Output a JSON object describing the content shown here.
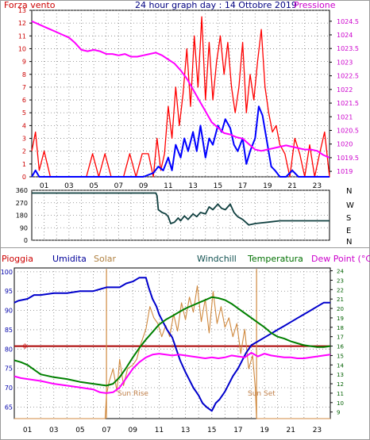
{
  "colors": {
    "wind_speed": "#ff0000",
    "wind_avg": "#0000ff",
    "pressure": "#ff00ff",
    "direction": "#104040",
    "rain": "#aa0000",
    "humidity": "#0000cc",
    "solar": "#d08a40",
    "windchill": "#008000",
    "temperature": "#008000",
    "dewpoint": "#ff00ff",
    "grid": "#808080",
    "frame": "#000000"
  },
  "header": {
    "left": "Forza vento",
    "center": "24 hour graph day : 14 Ottobre 2019",
    "right": "Pressione"
  },
  "bottom_header": {
    "rain": "Pioggia",
    "humidity": "Umidita",
    "solar": "Solar",
    "windchill": "Windchill",
    "temperature": "Temperatura",
    "dewpoint": "Dew Point (°C)"
  },
  "time_labels": [
    "01",
    "03",
    "05",
    "07",
    "09",
    "11",
    "13",
    "15",
    "17",
    "19",
    "21",
    "23"
  ],
  "annotations": {
    "sunrise": "Sun Rise",
    "sunset": "Sun Set"
  },
  "chart_data": [
    {
      "type": "line",
      "series_names": [
        "Forza vento",
        "Pressione"
      ],
      "left_axis_ticks": [
        "0",
        "1",
        "2",
        "3",
        "4",
        "5",
        "6",
        "7",
        "8",
        "9",
        "10",
        "11",
        "12",
        "13"
      ],
      "right_axis_ticks": [
        "1019",
        "1019.5",
        "1020",
        "1020.5",
        "1021",
        "1021.5",
        "1022",
        "1022.5",
        "1023",
        "1023.5",
        "1024",
        "1024.5"
      ],
      "ylim_left": [
        0,
        13
      ],
      "ylim_right": [
        1018.8,
        1024.9
      ],
      "wind_gust_x": [
        0,
        0.3,
        0.6,
        1,
        1.5,
        2,
        2.4,
        2.9,
        3.4,
        3.9,
        4.4,
        4.9,
        5.4,
        5.9,
        6.4,
        6.9,
        7.4,
        7.9,
        8.4,
        8.9,
        9.4,
        9.8,
        10.1,
        10.4,
        10.7,
        11,
        11.3,
        11.6,
        11.9,
        12.2,
        12.5,
        12.8,
        13.1,
        13.4,
        13.7,
        14,
        14.3,
        14.6,
        14.9,
        15.2,
        15.5,
        15.8,
        16.1,
        16.4,
        16.7,
        17,
        17.3,
        17.6,
        17.9,
        18.2,
        18.5,
        18.8,
        19.1,
        19.4,
        19.7,
        20,
        20.4,
        20.8,
        21.2,
        21.6,
        22,
        22.4,
        22.8,
        23.2,
        23.6,
        24
      ],
      "wind_gust_y": [
        2,
        3.5,
        0.5,
        2,
        0,
        0,
        0,
        0,
        0,
        0,
        0,
        1.8,
        0,
        1.8,
        0,
        0,
        0,
        1.8,
        0,
        1.8,
        1.8,
        0,
        3,
        0.5,
        1.8,
        5.5,
        3,
        7,
        4,
        6.5,
        10,
        5.5,
        11,
        7,
        12.5,
        6,
        10.5,
        6,
        9,
        11,
        8,
        10.5,
        7,
        5,
        7,
        10.5,
        5,
        8,
        6,
        9,
        11.5,
        7,
        5,
        3.5,
        4,
        2.5,
        1.8,
        0,
        3,
        1.8,
        0,
        2.5,
        0,
        1.8,
        3.5,
        0
      ],
      "wind_avg_x": [
        0,
        0.3,
        0.6,
        1,
        2,
        4,
        6,
        8,
        9,
        9.8,
        10.2,
        10.6,
        11,
        11.3,
        11.6,
        12,
        12.3,
        12.6,
        13,
        13.3,
        13.6,
        14,
        14.3,
        14.6,
        15,
        15.3,
        15.6,
        16,
        16.3,
        16.6,
        17,
        17.3,
        17.6,
        18,
        18.3,
        18.6,
        19,
        19.3,
        19.6,
        20,
        20.5,
        21,
        21.5,
        22,
        23,
        24
      ],
      "wind_avg_y": [
        0,
        0.5,
        0,
        0,
        0,
        0,
        0,
        0,
        0,
        0.3,
        0.8,
        0.5,
        1.5,
        0.5,
        2.5,
        1.5,
        3,
        2,
        3.5,
        2,
        4,
        1.5,
        3,
        2.5,
        4,
        3.5,
        4.5,
        3.8,
        2.5,
        2,
        3,
        1,
        2,
        3,
        5.5,
        4.8,
        2.5,
        0.8,
        0.5,
        0,
        0,
        0.5,
        0,
        0,
        0,
        0
      ],
      "pressure_x": [
        0,
        0.5,
        1,
        1.5,
        2,
        2.5,
        3,
        3.5,
        4,
        4.5,
        5,
        5.5,
        6,
        6.5,
        7,
        7.5,
        8,
        8.5,
        9,
        9.5,
        10,
        10.5,
        11,
        11.5,
        12,
        12.5,
        13,
        13.5,
        14,
        14.5,
        15,
        15.5,
        16,
        16.5,
        17,
        17.5,
        18,
        18.5,
        19,
        19.5,
        20,
        20.5,
        21,
        21.5,
        22,
        22.5,
        23,
        23.5,
        24
      ],
      "pressure_y": [
        1024.5,
        1024.4,
        1024.3,
        1024.2,
        1024.1,
        1024.0,
        1023.9,
        1023.7,
        1023.45,
        1023.4,
        1023.45,
        1023.4,
        1023.3,
        1023.3,
        1023.25,
        1023.3,
        1023.2,
        1023.2,
        1023.25,
        1023.3,
        1023.35,
        1023.25,
        1023.1,
        1022.95,
        1022.7,
        1022.4,
        1022.0,
        1021.6,
        1021.2,
        1020.8,
        1020.6,
        1020.4,
        1020.35,
        1020.25,
        1020.2,
        1020.0,
        1019.8,
        1019.75,
        1019.8,
        1019.85,
        1019.9,
        1019.95,
        1019.9,
        1019.85,
        1019.8,
        1019.8,
        1019.75,
        1019.6,
        1019.5
      ]
    },
    {
      "type": "line",
      "series_names": [
        "direction"
      ],
      "left_axis_ticks": [
        "0",
        "90",
        "180",
        "270",
        "360"
      ],
      "right_axis_ticks": [
        "N",
        "W",
        "S",
        "E",
        "N"
      ],
      "ylim": [
        0,
        360
      ],
      "direction_x": [
        0,
        2,
        4,
        6,
        8,
        9,
        10,
        10.1,
        10.2,
        10.5,
        10.8,
        11,
        11.2,
        11.5,
        11.8,
        12,
        12.3,
        12.6,
        13,
        13.3,
        13.6,
        14,
        14.3,
        14.6,
        15,
        15.3,
        15.6,
        16,
        16.3,
        16.6,
        17,
        17.5,
        18,
        18.5,
        19,
        20,
        22,
        24
      ],
      "direction_y": [
        340,
        340,
        340,
        340,
        340,
        340,
        340,
        320,
        220,
        200,
        190,
        170,
        120,
        130,
        160,
        140,
        175,
        150,
        190,
        170,
        200,
        190,
        240,
        220,
        260,
        230,
        220,
        260,
        200,
        170,
        150,
        110,
        120,
        125,
        130,
        140,
        140,
        140
      ]
    },
    {
      "type": "line",
      "series_names": [
        "Pioggia",
        "Umidita",
        "Solar",
        "Windchill",
        "Temperatura",
        "Dew Point (°C)"
      ],
      "left_axis_ticks": [
        "65",
        "70",
        "75",
        "80",
        "85",
        "90",
        "95",
        "100"
      ],
      "right_axis_ticks": [
        "9",
        "10",
        "11",
        "12",
        "13",
        "14",
        "15",
        "16",
        "17",
        "18",
        "19",
        "20",
        "21",
        "22",
        "23",
        "24"
      ],
      "rain_axis_label": "0",
      "ylim_left": [
        62,
        101
      ],
      "ylim_right": [
        8.3,
        24.3
      ],
      "humidity_x": [
        0,
        0.3,
        1,
        1.5,
        2,
        3,
        4,
        5,
        6,
        7,
        8,
        8.5,
        9,
        9.5,
        10,
        10.2,
        10.5,
        10.8,
        11,
        11.3,
        11.6,
        12,
        12.3,
        12.6,
        13,
        13.3,
        13.6,
        14,
        14.3,
        14.6,
        15,
        15.3,
        15.6,
        16,
        16.3,
        16.6,
        17,
        17.3,
        17.6,
        18,
        18.5,
        19,
        19.5,
        20,
        20.5,
        21,
        21.5,
        22,
        22.5,
        23,
        23.5,
        24
      ],
      "humidity_y": [
        92,
        92.5,
        93,
        94,
        94,
        94.5,
        94.5,
        95,
        95,
        96,
        96,
        97,
        97.5,
        98.5,
        98.5,
        96,
        93,
        91,
        89,
        87,
        85,
        83,
        80,
        77,
        74,
        72,
        70,
        68,
        66,
        65,
        64,
        66,
        67,
        69,
        71,
        73,
        75,
        77,
        79,
        81,
        82,
        83,
        84,
        85,
        86,
        87,
        88,
        89,
        90,
        91,
        92,
        92
      ],
      "temp_x": [
        0,
        0.5,
        1,
        2,
        3,
        4,
        5,
        6,
        6.5,
        7,
        7.5,
        8,
        8.5,
        9,
        9.5,
        10,
        10.5,
        11,
        11.5,
        12,
        12.5,
        13,
        13.5,
        14,
        14.5,
        15,
        15.5,
        16,
        16.5,
        17,
        17.5,
        18,
        18.5,
        19,
        19.5,
        20,
        20.5,
        21,
        21.5,
        22,
        22.5,
        23,
        23.5,
        24
      ],
      "temp_y": [
        14.5,
        14.3,
        14.0,
        13.0,
        12.7,
        12.5,
        12.2,
        12.0,
        11.9,
        11.8,
        12.0,
        12.7,
        13.7,
        14.8,
        15.8,
        16.7,
        17.5,
        18.3,
        18.8,
        19.2,
        19.6,
        20.0,
        20.3,
        20.6,
        20.9,
        21.2,
        21.1,
        20.9,
        20.5,
        20.0,
        19.5,
        19.0,
        18.5,
        18.0,
        17.4,
        17.0,
        16.8,
        16.5,
        16.3,
        16.1,
        16.0,
        15.9,
        15.9,
        16.0
      ],
      "dew_x": [
        0,
        0.5,
        1,
        2,
        3,
        4,
        5,
        6,
        6.5,
        7,
        7.5,
        8,
        8.5,
        9,
        9.5,
        10,
        10.5,
        11,
        11.5,
        12,
        12.5,
        13,
        13.5,
        14,
        14.5,
        15,
        15.5,
        16,
        16.5,
        17,
        17.5,
        18,
        18.5,
        19,
        19.5,
        20,
        20.5,
        21,
        21.5,
        22,
        22.5,
        23,
        23.5,
        24
      ],
      "dew_y": [
        12.8,
        12.6,
        12.5,
        12.3,
        12.0,
        11.8,
        11.6,
        11.4,
        11.1,
        11.0,
        11.1,
        11.6,
        12.6,
        13.6,
        14.3,
        14.8,
        15.1,
        15.2,
        15.1,
        15.0,
        15.1,
        15.0,
        14.9,
        14.8,
        14.7,
        14.8,
        14.7,
        14.8,
        15.0,
        14.9,
        14.8,
        15.3,
        14.9,
        15.2,
        15.0,
        14.9,
        14.8,
        14.8,
        14.7,
        14.7,
        14.8,
        14.9,
        15.0,
        15.1
      ],
      "solar_x": [
        0,
        6.9,
        7.0,
        7.2,
        7.5,
        7.8,
        8.0,
        8.3,
        8.6,
        9,
        9.3,
        9.6,
        10,
        10.3,
        10.6,
        10.9,
        11.2,
        11.5,
        11.8,
        12.1,
        12.4,
        12.7,
        13,
        13.3,
        13.6,
        13.9,
        14.2,
        14.5,
        14.8,
        15.1,
        15.4,
        15.7,
        16,
        16.3,
        16.6,
        16.9,
        17.2,
        17.5,
        17.8,
        18.1,
        18.3,
        18.4,
        24
      ],
      "solar_y": [
        8.3,
        8.3,
        10.8,
        12.2,
        13.6,
        11.2,
        14.6,
        11.8,
        13.6,
        14.0,
        14.6,
        16.2,
        17.8,
        20.2,
        19.0,
        18.4,
        17.0,
        18.2,
        17.0,
        19.4,
        17.6,
        20.6,
        18.8,
        21.2,
        19.6,
        22.4,
        18.6,
        21.0,
        17.4,
        21.8,
        18.4,
        20.2,
        18.0,
        19.0,
        17.0,
        18.4,
        15.2,
        17.8,
        13.6,
        15.0,
        11.6,
        8.3,
        8.3
      ],
      "sun_markers_x": [
        7.0,
        18.4
      ]
    }
  ]
}
